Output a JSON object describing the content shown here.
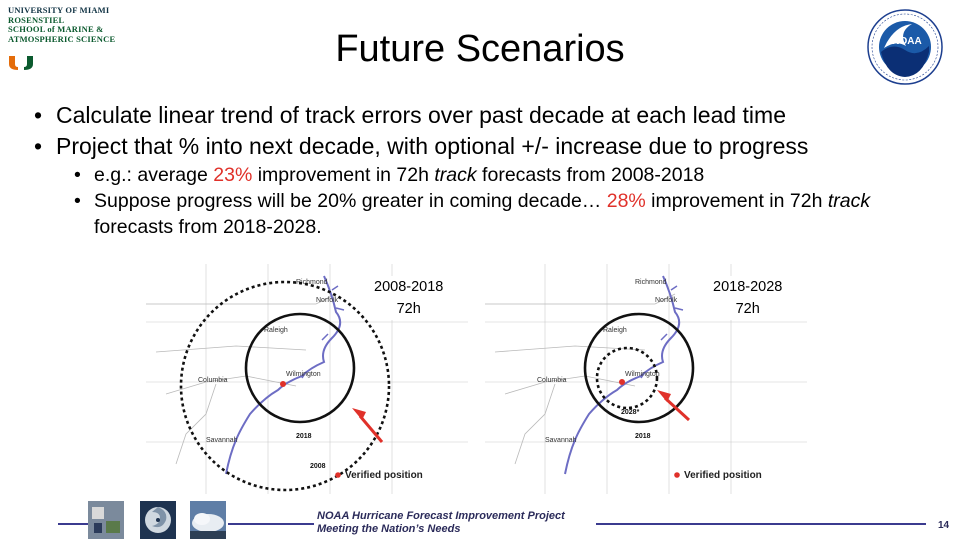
{
  "logos": {
    "um_lines": [
      "UNIVERSITY OF MIAMI",
      "ROSENSTIEL",
      "SCHOOL of MARINE &",
      "ATMOSPHERIC SCIENCE"
    ],
    "noaa_text": "NOAA"
  },
  "title": "Future Scenarios",
  "bullets": [
    "Calculate linear trend of track errors over past decade at each lead time",
    "Project that % into next decade, with optional +/- increase due to progress"
  ],
  "sub_bullets": {
    "one": {
      "pre": "e.g.: average ",
      "pct": "23%",
      "mid": " improvement in 72h ",
      "track": "track",
      "post": " forecasts from 2008-2018"
    },
    "two": {
      "pre": "Suppose progress will be 20% greater in coming decade… ",
      "pct": "28%",
      "mid": " improvement in 72h ",
      "track": "track",
      "post": " forecasts from 2018-2028."
    }
  },
  "maps": {
    "left": {
      "label_period": "2008-2018",
      "label_lead": "72h",
      "cities": [
        "Richmond",
        "Norfolk",
        "Raleigh",
        "Columbia",
        "Wilmington",
        "Savannah"
      ],
      "circle_labels": [
        "2018",
        "2008"
      ],
      "legend": "Verified position"
    },
    "right": {
      "label_period": "2018-2028",
      "label_lead": "72h",
      "cities": [
        "Richmond",
        "Norfolk",
        "Raleigh",
        "Columbia",
        "Wilmington",
        "Savannah"
      ],
      "circle_labels": [
        "2018",
        "2028*"
      ],
      "legend": "Verified position"
    }
  },
  "footer": {
    "line1": "NOAA Hurricane Forecast Improvement Project",
    "line2": "Meeting the Nation’s Needs",
    "page": "14"
  }
}
